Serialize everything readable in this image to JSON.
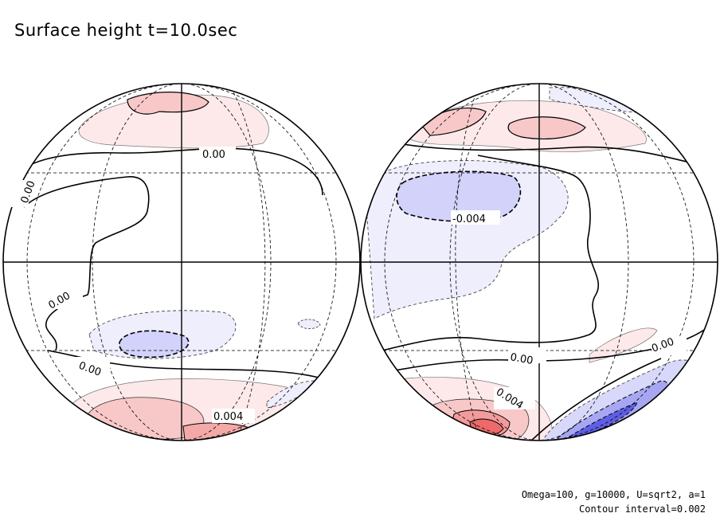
{
  "title": "Surface height t=10.0sec",
  "footer": {
    "params": "Omega=100, g=10000, U=sqrt2, a=1",
    "interval": "Contour interval=0.002"
  },
  "colors": {
    "positive": "#e84a4a",
    "negative": "#3a3ae0",
    "contour": "#000000",
    "graticule": "#000000"
  },
  "chart_data": {
    "type": "heatmap",
    "title": "Surface height t=10.0sec",
    "projection": "orthographic, two hemispheres",
    "contour_interval": 0.002,
    "contour_labels": [
      {
        "hemisphere": "left",
        "text": "0.00"
      },
      {
        "hemisphere": "left",
        "text": "0.00"
      },
      {
        "hemisphere": "left",
        "text": "0.00"
      },
      {
        "hemisphere": "left",
        "text": "0.00"
      },
      {
        "hemisphere": "left",
        "text": "0.004"
      },
      {
        "hemisphere": "right",
        "text": "-0.004"
      },
      {
        "hemisphere": "right",
        "text": "0.00"
      },
      {
        "hemisphere": "right",
        "text": "0.00"
      },
      {
        "hemisphere": "right",
        "text": "0.004"
      }
    ],
    "shading": {
      "positive": "red",
      "negative": "blue",
      "zero_line": "solid bold"
    }
  }
}
